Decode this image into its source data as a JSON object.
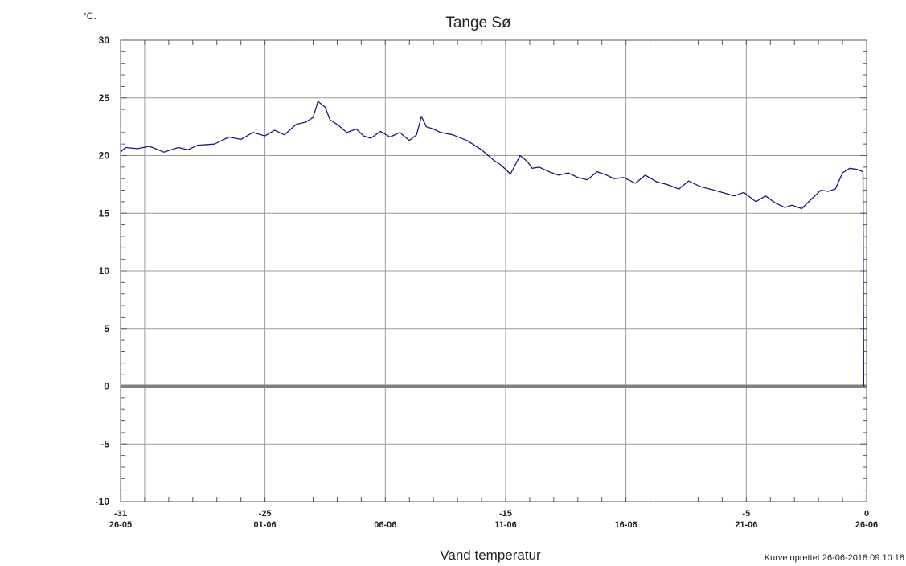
{
  "chart_data": {
    "type": "line",
    "title": "Tange Sø",
    "y_unit": "°C.",
    "xlabel": "Vand temperatur",
    "footer": "Kurve oprettet 26-06-2018 09:10:18",
    "xlim": [
      -31,
      0
    ],
    "ylim": [
      -10,
      30
    ],
    "y_ticks": [
      "30",
      "25",
      "20",
      "15",
      "10",
      "5",
      "0",
      "-5",
      "-10"
    ],
    "y_tick_values": [
      30,
      25,
      20,
      15,
      10,
      5,
      0,
      -5,
      -10
    ],
    "x_ticks": [
      {
        "x": -31,
        "day": "-31",
        "date": "26-05"
      },
      {
        "x": -25,
        "day": "-25",
        "date": "01-06"
      },
      {
        "x": -20,
        "day": "",
        "date": "06-06"
      },
      {
        "x": -15,
        "day": "-15",
        "date": "11-06"
      },
      {
        "x": -10,
        "day": "",
        "date": "16-06"
      },
      {
        "x": -5,
        "day": "-5",
        "date": "21-06"
      },
      {
        "x": 0,
        "day": "0",
        "date": "26-06"
      }
    ],
    "x_gridlines": [
      -30,
      -25,
      -20,
      -15,
      -10,
      -5
    ],
    "grid": true,
    "zero_line": true,
    "colors": {
      "series": "#1a1a7a",
      "grid": "#9a9a9a",
      "zero": "#808080",
      "axis": "#555555"
    },
    "series": [
      {
        "x": [
          -31.0,
          -30.8,
          -30.3,
          -29.8,
          -29.2,
          -28.6,
          -28.2,
          -27.8,
          -27.1,
          -26.5,
          -26.0,
          -25.5,
          -25.0,
          -24.6,
          -24.2,
          -23.7,
          -23.3,
          -23.0,
          -22.8,
          -22.5,
          -22.3,
          -22.0,
          -21.6,
          -21.2,
          -20.9,
          -20.6,
          -20.2,
          -19.8,
          -19.4,
          -19.0,
          -18.7,
          -18.5,
          -18.3,
          -18.0,
          -17.7,
          -17.2,
          -16.6,
          -16.0,
          -15.5,
          -15.2,
          -14.8,
          -14.4,
          -14.1,
          -13.9,
          -13.6,
          -13.2,
          -12.8,
          -12.4,
          -12.0,
          -11.6,
          -11.2,
          -10.8,
          -10.5,
          -10.1,
          -9.6,
          -9.2,
          -8.7,
          -8.3,
          -7.8,
          -7.4,
          -6.9,
          -6.5,
          -6.0,
          -5.5,
          -5.1,
          -4.6,
          -4.2,
          -3.8,
          -3.4,
          -3.1,
          -2.7,
          -2.3,
          -1.9,
          -1.6,
          -1.3,
          -1.0,
          -0.7,
          -0.4,
          -0.15,
          -0.12,
          -0.1
        ],
        "y": [
          20.3,
          20.7,
          20.6,
          20.8,
          20.3,
          20.7,
          20.5,
          20.9,
          21.0,
          21.6,
          21.4,
          22.0,
          21.7,
          22.2,
          21.8,
          22.7,
          22.9,
          23.3,
          24.7,
          24.2,
          23.1,
          22.7,
          22.0,
          22.3,
          21.7,
          21.5,
          22.1,
          21.6,
          22.0,
          21.3,
          21.8,
          23.4,
          22.5,
          22.3,
          22.0,
          21.8,
          21.3,
          20.5,
          19.6,
          19.2,
          18.4,
          20.0,
          19.5,
          18.9,
          19.0,
          18.6,
          18.3,
          18.5,
          18.1,
          17.9,
          18.6,
          18.3,
          18.0,
          18.1,
          17.6,
          18.3,
          17.7,
          17.5,
          17.1,
          17.8,
          17.3,
          17.1,
          16.8,
          16.5,
          16.8,
          16.0,
          16.5,
          15.9,
          15.5,
          15.7,
          15.4,
          16.2,
          17.0,
          16.9,
          17.1,
          18.5,
          18.9,
          18.8,
          18.6,
          0.1,
          0.0
        ]
      }
    ]
  }
}
